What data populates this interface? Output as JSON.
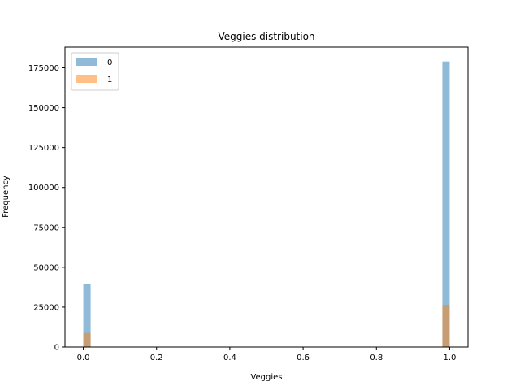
{
  "chart_data": {
    "type": "bar",
    "title": "Veggies distribution",
    "xlabel": "Veggies",
    "ylabel": "Frequency",
    "xlim": [
      -0.05,
      1.05
    ],
    "ylim": [
      0,
      188000
    ],
    "xticks": [
      0.0,
      0.2,
      0.4,
      0.6,
      0.8,
      1.0
    ],
    "xtick_labels": [
      "0.0",
      "0.2",
      "0.4",
      "0.6",
      "0.8",
      "1.0"
    ],
    "yticks": [
      0,
      25000,
      50000,
      75000,
      100000,
      125000,
      150000,
      175000
    ],
    "ytick_labels": [
      "0",
      "25000",
      "50000",
      "75000",
      "100000",
      "125000",
      "150000",
      "175000"
    ],
    "bins": 50,
    "bin_width": 0.02,
    "legend_position": "upper-left",
    "series": [
      {
        "name": "0",
        "color": "#1f77b4",
        "alpha": 0.5,
        "values": [
          {
            "x": 0.0,
            "y": 39500
          },
          {
            "x": 1.0,
            "y": 179000
          }
        ]
      },
      {
        "name": "1",
        "color": "#ff7f0e",
        "alpha": 0.5,
        "values": [
          {
            "x": 0.0,
            "y": 8800
          },
          {
            "x": 1.0,
            "y": 26500
          }
        ]
      }
    ]
  }
}
